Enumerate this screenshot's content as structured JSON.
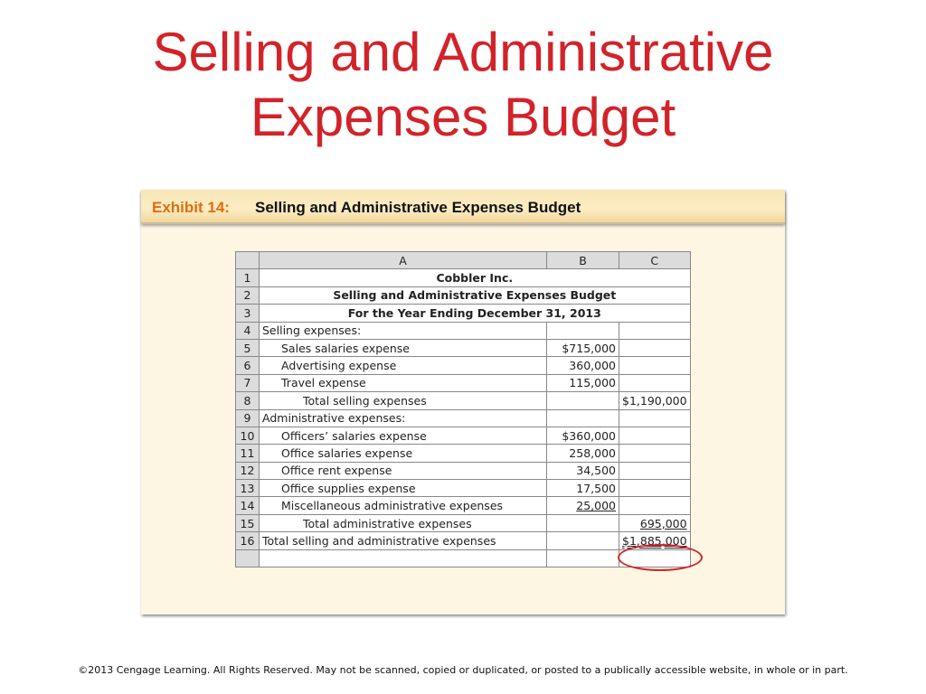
{
  "slide": {
    "title_line1": "Selling and Administrative",
    "title_line2": "Expenses Budget",
    "accent_color": "#d2232a",
    "footer": "©2013 Cengage Learning. All Rights Reserved. May not be scanned, copied or duplicated, or posted to a publically accessible website, in whole or in part."
  },
  "exhibit": {
    "label": "Exhibit 14:",
    "title": "Selling and Administrative Expenses Budget",
    "label_color": "#e36c0a"
  },
  "sheet": {
    "columns": [
      "A",
      "B",
      "C"
    ],
    "rows": [
      {
        "n": "1",
        "a": "Cobbler Inc.",
        "b": "",
        "c": ""
      },
      {
        "n": "2",
        "a": "Selling and Administrative Expenses Budget",
        "b": "",
        "c": ""
      },
      {
        "n": "3",
        "a": "For the Year Ending December 31, 2013",
        "b": "",
        "c": ""
      },
      {
        "n": "4",
        "a": "Selling expenses:",
        "b": "",
        "c": ""
      },
      {
        "n": "5",
        "a": "Sales salaries expense",
        "b": "$715,000",
        "c": ""
      },
      {
        "n": "6",
        "a": "Advertising expense",
        "b": "360,000",
        "c": ""
      },
      {
        "n": "7",
        "a": "Travel expense",
        "b": "115,000",
        "c": ""
      },
      {
        "n": "8",
        "a": "Total selling expenses",
        "b": "",
        "c": "$1,190,000"
      },
      {
        "n": "9",
        "a": "Administrative expenses:",
        "b": "",
        "c": ""
      },
      {
        "n": "10",
        "a": "Officers’ salaries expense",
        "b": "$360,000",
        "c": ""
      },
      {
        "n": "11",
        "a": "Office salaries expense",
        "b": "258,000",
        "c": ""
      },
      {
        "n": "12",
        "a": "Office rent expense",
        "b": "34,500",
        "c": ""
      },
      {
        "n": "13",
        "a": "Office supplies expense",
        "b": "17,500",
        "c": ""
      },
      {
        "n": "14",
        "a": "Miscellaneous administrative expenses",
        "b": "25,000",
        "c": ""
      },
      {
        "n": "15",
        "a": "Total administrative expenses",
        "b": "",
        "c": "695,000"
      },
      {
        "n": "16",
        "a": "Total selling and administrative expenses",
        "b": "",
        "c": "$1,885,000"
      },
      {
        "n": "",
        "a": "",
        "b": "",
        "c": ""
      }
    ]
  }
}
